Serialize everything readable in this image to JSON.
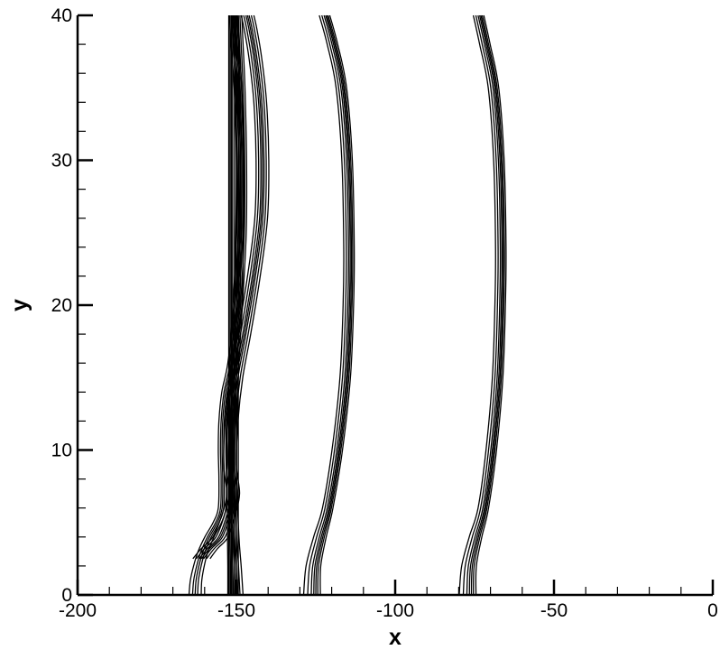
{
  "chart_data": {
    "type": "line",
    "title": "",
    "xlabel": "x",
    "ylabel": "y",
    "xlim": [
      -200,
      0
    ],
    "ylim": [
      0,
      40
    ],
    "grid": false,
    "x_major_ticks": [
      -200,
      -150,
      -100,
      -50,
      0
    ],
    "x_tick_labels": [
      "-200",
      "-150",
      "-100",
      "-50",
      "0"
    ],
    "x_minor_step": 10,
    "y_major_ticks": [
      0,
      10,
      20,
      30,
      40
    ],
    "y_tick_labels": [
      "0",
      "10",
      "20",
      "30",
      "40"
    ],
    "y_minor_step": 2,
    "series": [
      {
        "shape": "front",
        "anchors": [
          [
            0,
            -76
          ],
          [
            2,
            -75.7
          ],
          [
            4,
            -73.8
          ],
          [
            6,
            -71.5
          ],
          [
            10,
            -69
          ],
          [
            15,
            -67
          ],
          [
            20,
            -66.2
          ],
          [
            24,
            -66
          ],
          [
            30,
            -66.6
          ],
          [
            35,
            -68.3
          ],
          [
            38,
            -71
          ],
          [
            40,
            -73
          ]
        ],
        "offsets": [
          -2.4,
          -1.6,
          -0.9,
          -0.4,
          0,
          0.4,
          0.9
        ]
      },
      {
        "shape": "front",
        "anchors": [
          [
            0,
            -125
          ],
          [
            2,
            -124.7
          ],
          [
            4,
            -122.8
          ],
          [
            6,
            -120.5
          ],
          [
            10,
            -117.5
          ],
          [
            15,
            -115
          ],
          [
            20,
            -114
          ],
          [
            24,
            -113.8
          ],
          [
            30,
            -114.4
          ],
          [
            35,
            -116.2
          ],
          [
            38,
            -119
          ],
          [
            40,
            -121.5
          ]
        ],
        "offsets": [
          -2.4,
          -1.6,
          -0.9,
          -0.4,
          0,
          0.4,
          0.9
        ]
      },
      {
        "shape": "front",
        "anchors": [
          [
            0,
            -150.3
          ],
          [
            2,
            -150.6
          ],
          [
            4,
            -151
          ],
          [
            8,
            -151.4
          ],
          [
            12,
            -151.3
          ],
          [
            16,
            -150.7
          ],
          [
            20,
            -149.6
          ],
          [
            25,
            -148.4
          ],
          [
            30,
            -148.3
          ],
          [
            35,
            -148.8
          ],
          [
            38,
            -149.4
          ],
          [
            40,
            -149.8
          ]
        ],
        "offsets": [
          -1.5,
          -0.9,
          -0.4,
          0,
          0.4,
          0.9,
          1.5
        ]
      },
      {
        "shape": "front",
        "anchors": [
          [
            2.5,
            -161
          ],
          [
            3.2,
            -158.5
          ],
          [
            4,
            -155
          ],
          [
            5.5,
            -152.5
          ],
          [
            7,
            -151
          ],
          [
            9,
            -152
          ],
          [
            12,
            -151.5
          ],
          [
            15,
            -150
          ],
          [
            18,
            -147.5
          ],
          [
            22,
            -144.5
          ],
          [
            26,
            -142.2
          ],
          [
            30,
            -141.8
          ],
          [
            34,
            -142.5
          ],
          [
            37,
            -144
          ],
          [
            39,
            -145.5
          ],
          [
            40,
            -146.5
          ]
        ],
        "offsets": [
          -2.0,
          -1.2,
          -0.5,
          0,
          0.5,
          1.2,
          2.0
        ]
      },
      {
        "shape": "front",
        "anchors": [
          [
            0,
            -163
          ],
          [
            1,
            -162.7
          ],
          [
            2,
            -161.8
          ],
          [
            3,
            -160.5
          ],
          [
            4,
            -158.5
          ],
          [
            5,
            -156
          ],
          [
            6,
            -154.5
          ],
          [
            8,
            -154.3
          ],
          [
            10,
            -154.5
          ],
          [
            12,
            -154.3
          ],
          [
            14,
            -153.4
          ],
          [
            16,
            -151.5
          ],
          [
            20,
            -149.5
          ],
          [
            25,
            -149
          ],
          [
            30,
            -148.8
          ],
          [
            35,
            -149.5
          ],
          [
            38,
            -150.5
          ],
          [
            40,
            -151
          ]
        ],
        "offsets": [
          -1.2,
          -0.5,
          0,
          0.5,
          1.2
        ]
      },
      {
        "shape": "vertical",
        "anchors": [
          [
            0,
            -152
          ],
          [
            40,
            -152
          ]
        ],
        "offsets": [
          -0.4,
          0,
          0.4,
          0.8,
          1.4,
          2.0,
          2.6
        ]
      }
    ]
  }
}
